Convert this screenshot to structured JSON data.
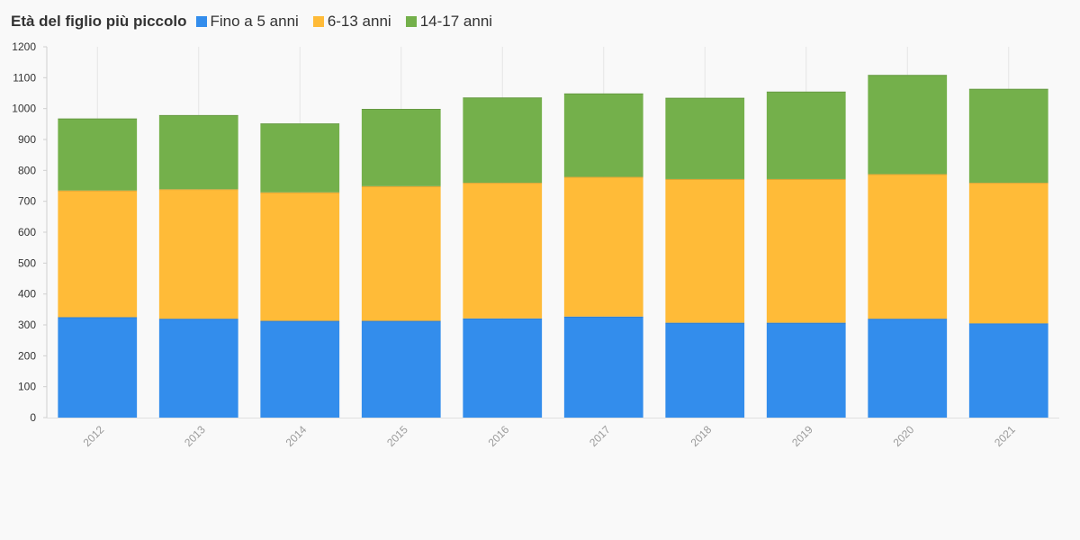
{
  "chart_data": {
    "type": "bar",
    "stacked": true,
    "title": "",
    "xlabel": "",
    "ylabel": "",
    "legend": {
      "title": "Età del figlio più piccolo",
      "placement": "top-left"
    },
    "categories": [
      "2012",
      "2013",
      "2014",
      "2015",
      "2016",
      "2017",
      "2018",
      "2019",
      "2020",
      "2021"
    ],
    "series": [
      {
        "name": "Fino a 5 anni",
        "color": "#338dec",
        "values": [
          325,
          320,
          313,
          313,
          321,
          327,
          307,
          307,
          320,
          305
        ]
      },
      {
        "name": "6-13 anni",
        "color": "#ffbb38",
        "values": [
          410,
          419,
          416,
          436,
          439,
          452,
          465,
          465,
          468,
          455
        ]
      },
      {
        "name": "14-17 anni",
        "color": "#74b04b",
        "values": [
          233,
          240,
          223,
          250,
          276,
          270,
          263,
          283,
          321,
          304
        ]
      }
    ],
    "ylim": [
      0,
      1200
    ],
    "yticks": [
      0,
      100,
      200,
      300,
      400,
      500,
      600,
      700,
      800,
      900,
      1000,
      1100,
      1200
    ],
    "grid": {
      "vertical": true,
      "horizontal": false
    }
  }
}
